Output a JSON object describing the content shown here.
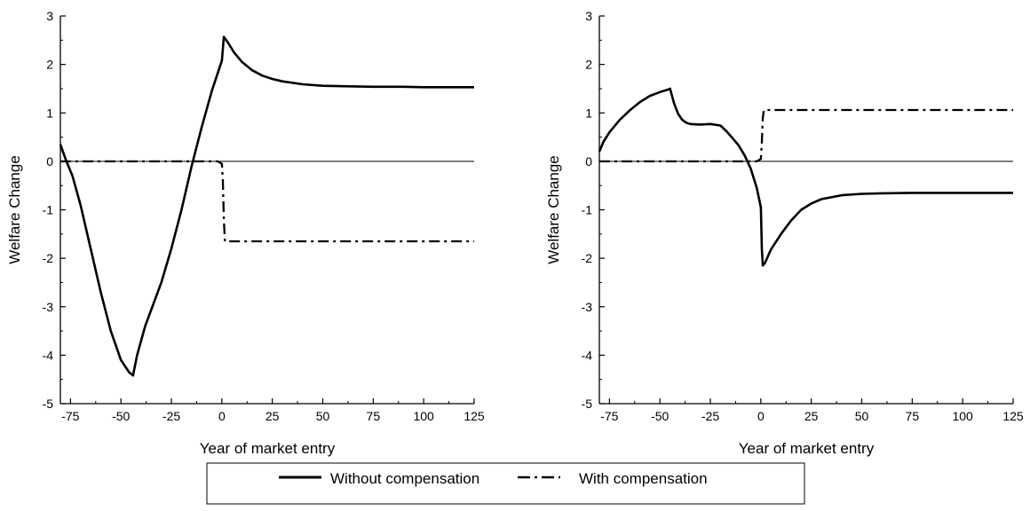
{
  "chart_data": [
    {
      "type": "line",
      "xlabel": "Year of market entry",
      "ylabel": "Welfare Change",
      "xlim": [
        -80,
        125
      ],
      "ylim": [
        -5,
        3
      ],
      "xticks": [
        -75,
        -50,
        -25,
        0,
        25,
        50,
        75,
        100,
        125
      ],
      "yticks": [
        -5,
        -4,
        -3,
        -2,
        -1,
        0,
        1,
        2,
        3
      ],
      "zero_line": true,
      "series": [
        {
          "name": "Without compensation",
          "style": "solid",
          "x": [
            -80,
            -77,
            -74,
            -70,
            -65,
            -60,
            -55,
            -50,
            -46,
            -44,
            -42,
            -38,
            -34,
            -30,
            -25,
            -20,
            -15,
            -10,
            -5,
            0,
            1,
            3,
            6,
            10,
            15,
            20,
            25,
            30,
            40,
            50,
            60,
            75,
            90,
            100,
            110,
            125
          ],
          "y": [
            0.35,
            0.0,
            -0.3,
            -0.9,
            -1.8,
            -2.7,
            -3.5,
            -4.1,
            -4.35,
            -4.42,
            -4.0,
            -3.4,
            -2.95,
            -2.5,
            -1.8,
            -1.0,
            -0.1,
            0.7,
            1.45,
            2.08,
            2.57,
            2.45,
            2.25,
            2.05,
            1.88,
            1.77,
            1.7,
            1.65,
            1.59,
            1.56,
            1.55,
            1.54,
            1.54,
            1.53,
            1.53,
            1.53
          ]
        },
        {
          "name": "With compensation",
          "style": "dashdot",
          "x": [
            -80,
            -60,
            -40,
            -20,
            -2,
            0,
            0.5,
            1,
            1.5,
            5,
            25,
            50,
            75,
            100,
            125
          ],
          "y": [
            0,
            0,
            0,
            0,
            0,
            -0.05,
            -0.4,
            -1.2,
            -1.65,
            -1.65,
            -1.65,
            -1.65,
            -1.65,
            -1.65,
            -1.65
          ]
        }
      ]
    },
    {
      "type": "line",
      "xlabel": "Year of market entry",
      "ylabel": "Welfare Change",
      "xlim": [
        -80,
        125
      ],
      "ylim": [
        -5,
        3
      ],
      "xticks": [
        -75,
        -50,
        -25,
        0,
        25,
        50,
        75,
        100,
        125
      ],
      "yticks": [
        -5,
        -4,
        -3,
        -2,
        -1,
        0,
        1,
        2,
        3
      ],
      "zero_line": true,
      "series": [
        {
          "name": "Without compensation",
          "style": "solid",
          "x": [
            -80,
            -78,
            -75,
            -70,
            -65,
            -60,
            -55,
            -50,
            -46,
            -45,
            -43,
            -41,
            -39,
            -37,
            -35,
            -30,
            -25,
            -20,
            -17,
            -14,
            -11,
            -8,
            -5,
            -2,
            0,
            0.5,
            1,
            2,
            5,
            10,
            15,
            20,
            25,
            30,
            40,
            50,
            60,
            75,
            100,
            125
          ],
          "y": [
            0.2,
            0.4,
            0.6,
            0.85,
            1.05,
            1.22,
            1.35,
            1.43,
            1.48,
            1.5,
            1.2,
            0.98,
            0.86,
            0.8,
            0.77,
            0.76,
            0.77,
            0.74,
            0.62,
            0.48,
            0.33,
            0.12,
            -0.15,
            -0.55,
            -0.95,
            -1.8,
            -2.15,
            -2.1,
            -1.82,
            -1.5,
            -1.22,
            -1.0,
            -0.87,
            -0.78,
            -0.7,
            -0.67,
            -0.66,
            -0.65,
            -0.65,
            -0.65
          ]
        },
        {
          "name": "With compensation",
          "style": "dashdot",
          "x": [
            -80,
            -60,
            -40,
            -20,
            -2,
            0,
            0.5,
            1,
            1.5,
            5,
            25,
            50,
            75,
            100,
            125
          ],
          "y": [
            0,
            0,
            0,
            0,
            0,
            0.05,
            0.4,
            0.9,
            1.06,
            1.06,
            1.06,
            1.06,
            1.06,
            1.06,
            1.06
          ]
        }
      ]
    }
  ],
  "legend": {
    "items": [
      {
        "label": "Without compensation",
        "style": "solid"
      },
      {
        "label": "With compensation",
        "style": "dashdot"
      }
    ]
  }
}
